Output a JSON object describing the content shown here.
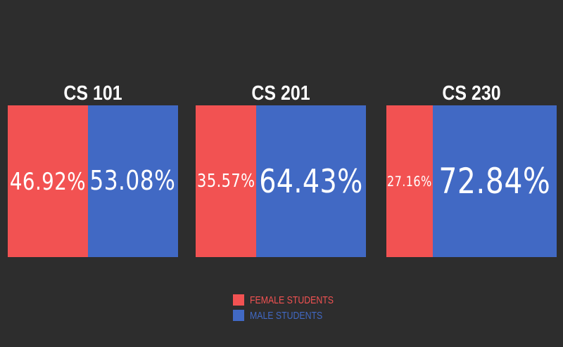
{
  "chart_data": {
    "type": "bar",
    "stacked": true,
    "normalized": true,
    "categories": [
      "CS 101",
      "CS 201",
      "CS 230"
    ],
    "series": [
      {
        "name": "FEMALE STUDENTS",
        "color": "#f25252",
        "values": [
          46.92,
          35.57,
          27.16
        ],
        "labels": [
          "46.92%",
          "35.57%",
          "27.16%"
        ]
      },
      {
        "name": "MALE STUDENTS",
        "color": "#4169c4",
        "values": [
          53.08,
          64.43,
          72.84
        ],
        "labels": [
          "53.08%",
          "64.43%",
          "72.84%"
        ]
      }
    ],
    "title": "",
    "legend": "bottom-center",
    "grid": false
  }
}
